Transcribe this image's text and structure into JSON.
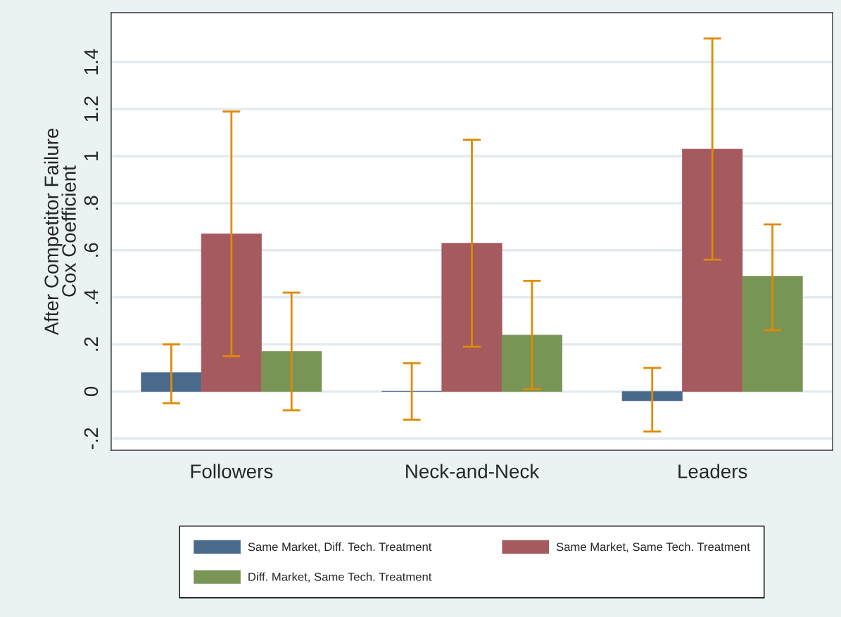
{
  "chart_data": {
    "type": "bar",
    "ylabel": "After Competitor Failure\nCox Coefficient",
    "categories": [
      "Followers",
      "Neck-and-Neck",
      "Leaders"
    ],
    "series": [
      {
        "name": "Same Market, Diff. Tech. Treatment",
        "color": "#4a6a8c",
        "values": [
          0.08,
          0.0,
          -0.04
        ],
        "errors": [
          [
            -0.05,
            0.2
          ],
          [
            -0.12,
            0.12
          ],
          [
            -0.17,
            0.1
          ]
        ]
      },
      {
        "name": "Same Market, Same Tech. Treatment",
        "color": "#a45a5e",
        "values": [
          0.67,
          0.63,
          1.03
        ],
        "errors": [
          [
            0.15,
            1.19
          ],
          [
            0.19,
            1.07
          ],
          [
            0.56,
            1.5
          ]
        ]
      },
      {
        "name": "Diff. Market, Same Tech. Treatment",
        "color": "#789556",
        "values": [
          0.17,
          0.24,
          0.49
        ],
        "errors": [
          [
            -0.08,
            0.42
          ],
          [
            0.01,
            0.47
          ],
          [
            0.26,
            0.71
          ]
        ]
      }
    ],
    "ylim": [
      -0.25,
      1.61
    ],
    "yticks": [
      {
        "value": -0.2,
        "label": "-.2"
      },
      0,
      {
        "value": 0.2,
        "label": ".2"
      },
      {
        "value": 0.4,
        "label": ".4"
      },
      {
        "value": 0.6,
        "label": ".6"
      },
      {
        "value": 0.8,
        "label": ".8"
      },
      1,
      {
        "value": 1.2,
        "label": "1.2"
      },
      {
        "value": 1.4,
        "label": "1.4"
      }
    ],
    "grid": "y",
    "legend": "bottom"
  }
}
